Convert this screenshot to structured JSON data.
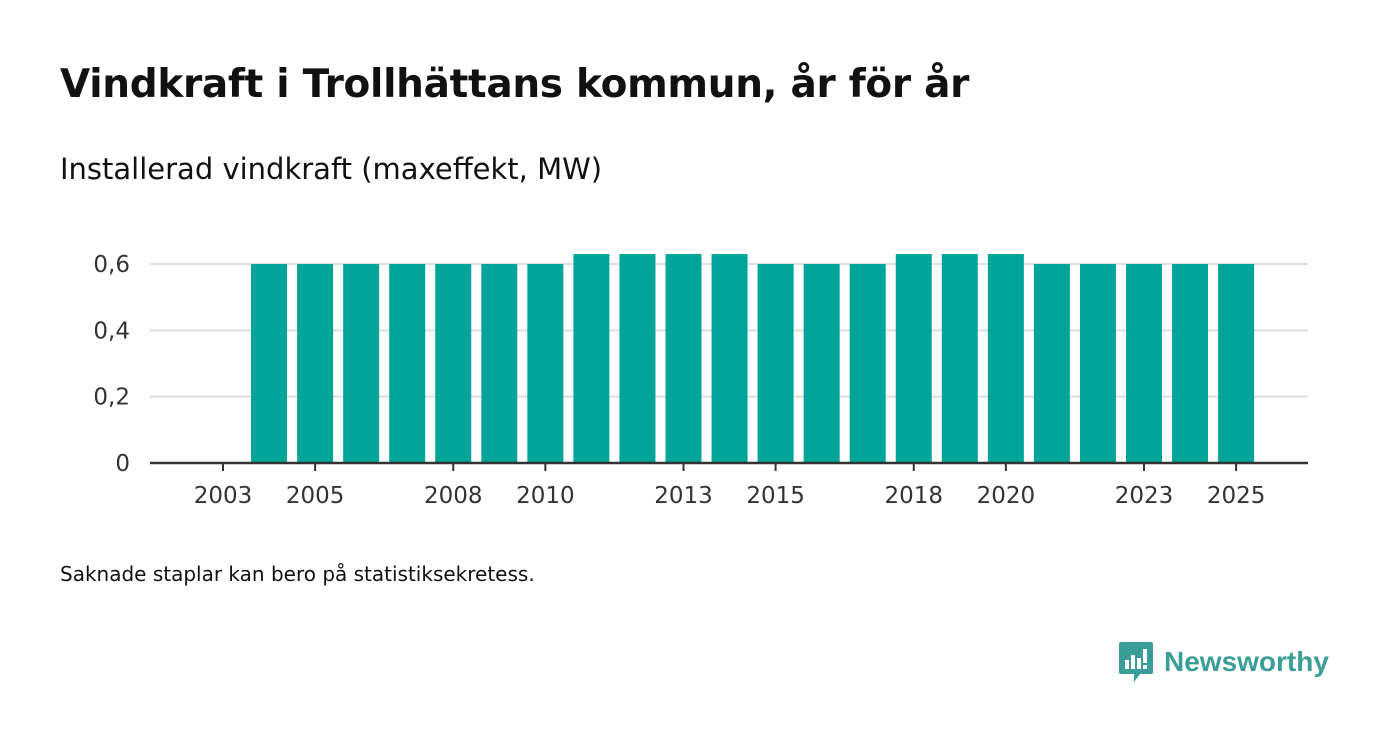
{
  "title": "Vindkraft i Trollhättans kommun, år för år",
  "subtitle": "Installerad vindkraft (maxeffekt, MW)",
  "note": "Saknade staplar kan bero på statistiksekretess.",
  "brand": {
    "name": "Newsworthy",
    "icon": "newsworthy-logo-icon"
  },
  "colors": {
    "bar": "#00a499",
    "grid": "#dddddd",
    "axis": "#333333",
    "brand": "#3a9e96"
  },
  "chart_data": {
    "type": "bar",
    "title": "Vindkraft i Trollhättans kommun, år för år",
    "ylabel": "Installerad vindkraft (maxeffekt, MW)",
    "xlabel": "",
    "categories": [
      "2003",
      "2004",
      "2005",
      "2006",
      "2007",
      "2008",
      "2009",
      "2010",
      "2011",
      "2012",
      "2013",
      "2014",
      "2015",
      "2016",
      "2017",
      "2018",
      "2019",
      "2020",
      "2021",
      "2022",
      "2023",
      "2024",
      "2025"
    ],
    "values": [
      null,
      0.6,
      0.6,
      0.6,
      0.6,
      0.6,
      0.6,
      0.6,
      0.63,
      0.63,
      0.63,
      0.63,
      0.6,
      0.6,
      0.6,
      0.63,
      0.63,
      0.63,
      0.6,
      0.6,
      0.6,
      0.6,
      0.6
    ],
    "x_tick_labels": [
      "2003",
      "2005",
      "2008",
      "2010",
      "2013",
      "2015",
      "2018",
      "2020",
      "2023",
      "2025"
    ],
    "y_ticks": [
      {
        "value": 0,
        "label": "0"
      },
      {
        "value": 0.2,
        "label": "0,2"
      },
      {
        "value": 0.4,
        "label": "0,4"
      },
      {
        "value": 0.6,
        "label": "0,6"
      }
    ],
    "ylim": [
      0,
      0.6
    ],
    "grid": true,
    "legend": "none"
  }
}
